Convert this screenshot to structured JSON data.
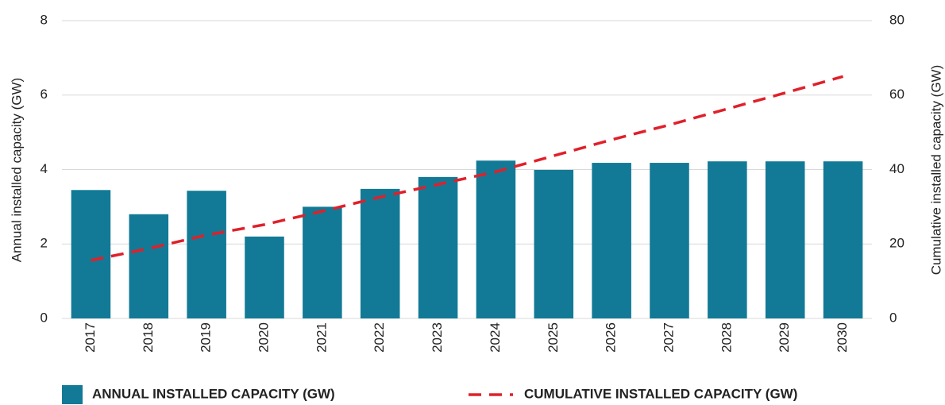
{
  "chart_data": {
    "type": "bar",
    "categories": [
      "2017",
      "2018",
      "2019",
      "2020",
      "2021",
      "2022",
      "2023",
      "2024",
      "2025",
      "2026",
      "2027",
      "2028",
      "2029",
      "2030"
    ],
    "series": [
      {
        "name": "ANNUAL INSTALLED CAPACITY (GW)",
        "type": "bar",
        "color": "#127a96",
        "values": [
          3.45,
          2.8,
          3.43,
          2.2,
          3.0,
          3.48,
          3.8,
          4.24,
          3.99,
          4.18,
          4.18,
          4.22,
          4.22,
          4.22
        ]
      },
      {
        "name": "CUMULATIVE INSTALLED CAPACITY (GW)",
        "type": "line",
        "axis": "y2",
        "color": "#e0202a",
        "values": [
          15.6,
          18.8,
          22.4,
          25.2,
          28.8,
          32.6,
          36,
          39.4,
          43.7,
          48,
          52,
          56.3,
          60.6,
          65
        ]
      }
    ],
    "ylabel": "Annual installed capacity (GW)",
    "y2label": "Cumulative installed capacity (GW)",
    "ylim": [
      0,
      8
    ],
    "yticks": [
      0,
      2,
      4,
      6,
      8
    ],
    "y2lim": [
      0,
      80
    ],
    "y2ticks": [
      0,
      20,
      40,
      60,
      80
    ],
    "grid": true
  }
}
